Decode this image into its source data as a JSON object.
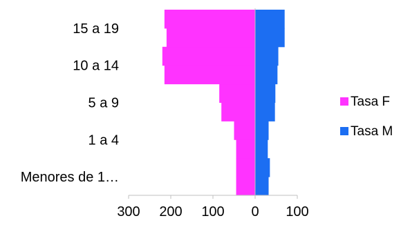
{
  "chart_data": {
    "type": "bar",
    "orientation": "horizontal",
    "stacked": "population-pyramid",
    "categories": [
      "Menores de 1…",
      "1 a 4",
      "5  a 9",
      "10 a 14",
      "15 a 19"
    ],
    "series": [
      {
        "name": "Tasa F",
        "color": "#FF33FF",
        "values": [
          [
            -45,
            -45
          ],
          [
            -50,
            -45
          ],
          [
            -85,
            -80
          ],
          [
            -220,
            -215
          ],
          [
            -215,
            -210
          ]
        ]
      },
      {
        "name": "Tasa M",
        "color": "#1C6EF2",
        "values": [
          [
            35,
            32
          ],
          [
            32,
            30
          ],
          [
            48,
            47
          ],
          [
            55,
            53
          ],
          [
            70,
            70
          ]
        ]
      }
    ],
    "xlim": [
      -300,
      100
    ],
    "x_ticks": [
      -300,
      -200,
      -100,
      0,
      100
    ],
    "x_tick_labels": [
      "300",
      "200",
      "100",
      "0",
      "100"
    ],
    "title": "",
    "xlabel": "",
    "ylabel": "",
    "grid": false,
    "legend": {
      "position": "right",
      "entries": [
        "Tasa F",
        "Tasa M"
      ]
    }
  }
}
